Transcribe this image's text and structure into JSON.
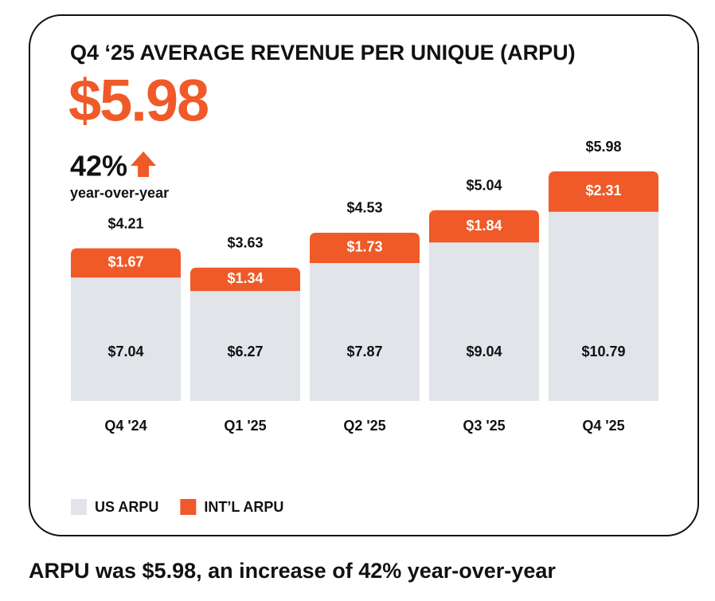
{
  "chart_data": {
    "type": "stacked_bar",
    "title": "Q4 ‘25 AVERAGE REVENUE PER UNIQUE (ARPU)",
    "headline": "$5.98",
    "change": "42%",
    "change_label": "year-over-year",
    "categories": [
      "Q4 '24",
      "Q1 '25",
      "Q2 '25",
      "Q3 '25",
      "Q4 '25"
    ],
    "series": [
      {
        "name": "US ARPU",
        "color": "#e1e4e9",
        "values": [
          7.04,
          6.27,
          7.87,
          9.04,
          10.79
        ],
        "value_labels": [
          "$7.04",
          "$6.27",
          "$7.87",
          "$9.04",
          "$10.79"
        ]
      },
      {
        "name": "INT’L ARPU",
        "color": "#ef5a28",
        "values": [
          1.67,
          1.34,
          1.73,
          1.84,
          2.31
        ],
        "value_labels": [
          "$1.67",
          "$1.34",
          "$1.73",
          "$1.84",
          "$2.31"
        ]
      }
    ],
    "totals": {
      "values": [
        4.21,
        3.63,
        4.53,
        5.04,
        5.98
      ],
      "value_labels": [
        "$4.21",
        "$3.63",
        "$4.53",
        "$5.04",
        "$5.98"
      ]
    }
  },
  "caption": "ARPU was $5.98, an increase of 42% year-over-year"
}
